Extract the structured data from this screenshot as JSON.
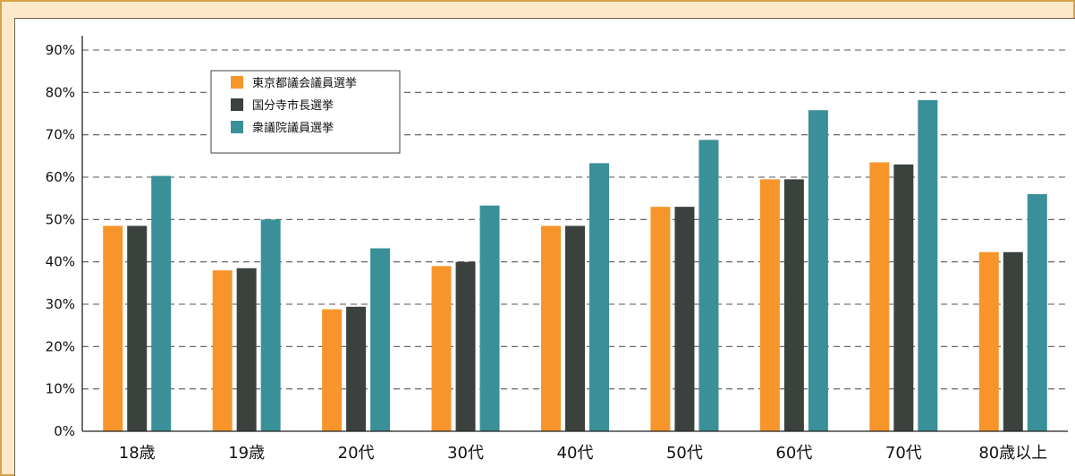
{
  "chart_data": {
    "type": "bar",
    "categories": [
      "18歳",
      "19歳",
      "20代",
      "30代",
      "40代",
      "50代",
      "60代",
      "70代",
      "80歳以上"
    ],
    "series": [
      {
        "name": "東京都議会議員選挙",
        "color": "#f7952b",
        "values": [
          48.5,
          38.0,
          28.8,
          39.0,
          48.5,
          53.0,
          59.5,
          63.5,
          42.3
        ]
      },
      {
        "name": "国分寺市長選挙",
        "color": "#3b423d",
        "values": [
          48.5,
          38.5,
          29.4,
          40.0,
          48.5,
          53.0,
          59.5,
          63.0,
          42.3
        ]
      },
      {
        "name": "衆議院議員選挙",
        "color": "#3a9098",
        "values": [
          60.3,
          50.0,
          43.2,
          53.3,
          63.3,
          68.8,
          75.8,
          78.2,
          56.0
        ]
      }
    ],
    "ylim": [
      0,
      90
    ],
    "yticks": [
      "0%",
      "10%",
      "20%",
      "30%",
      "40%",
      "50%",
      "60%",
      "70%",
      "80%",
      "90%"
    ],
    "grid": "horizontal dashed",
    "legend_position": "top-left"
  }
}
